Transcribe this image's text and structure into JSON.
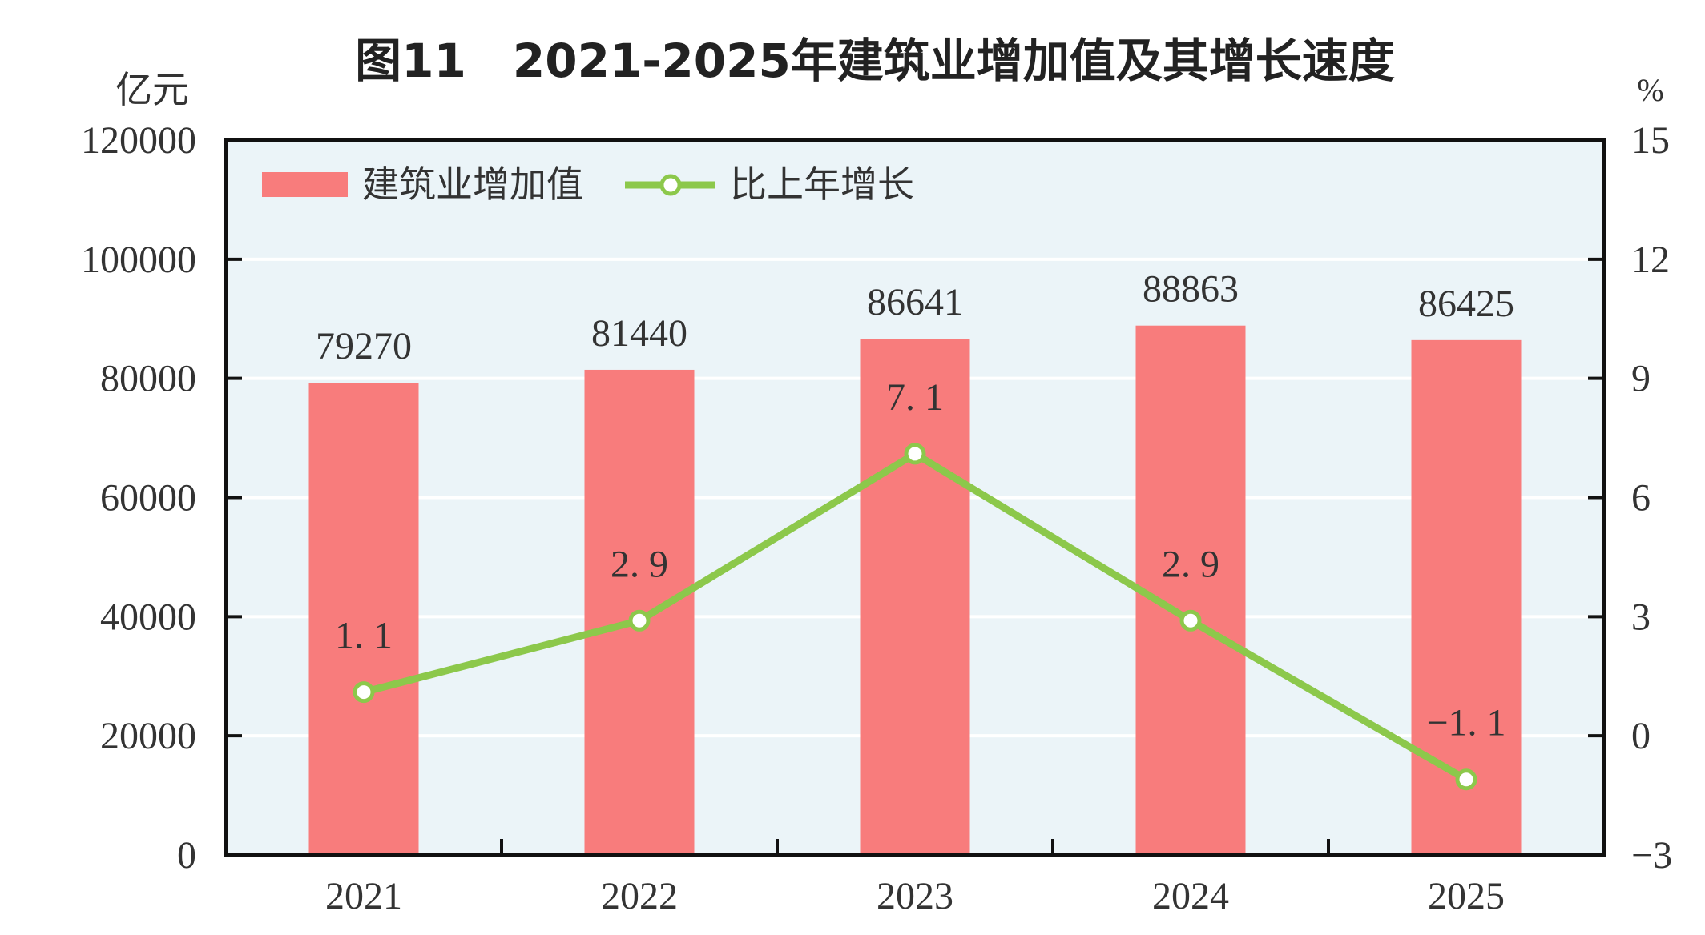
{
  "chart_data": {
    "type": "bar+line",
    "title": "图11　2021-2025年建筑业增加值及其增长速度",
    "categories": [
      "2021",
      "2022",
      "2023",
      "2024",
      "2025"
    ],
    "y_left": {
      "unit_label": "亿元",
      "ylim": [
        0,
        120000
      ],
      "ticks": [
        "0",
        "20000",
        "40000",
        "60000",
        "80000",
        "100000",
        "120000"
      ]
    },
    "y_right": {
      "unit_label": "%",
      "ylim": [
        -3,
        15
      ],
      "ticks": [
        "-3",
        "0",
        "3",
        "6",
        "9",
        "12",
        "15"
      ]
    },
    "series": [
      {
        "name": "建筑业增加值",
        "type": "bar",
        "axis": "left",
        "values": [
          79270,
          81440,
          86641,
          88863,
          86425
        ],
        "labels": [
          "79270",
          "81440",
          "86641",
          "88863",
          "86425"
        ],
        "color": "#f87c7c"
      },
      {
        "name": "比上年增长",
        "type": "line",
        "axis": "right",
        "values": [
          1.1,
          2.9,
          7.1,
          2.9,
          -1.1
        ],
        "labels": [
          "1. 1",
          "2. 9",
          "7. 1",
          "2. 9",
          "−1. 1"
        ],
        "color": "#8cc84b"
      }
    ],
    "grid": true,
    "legend": "top-left",
    "plot_background": "#ebf4f8"
  }
}
